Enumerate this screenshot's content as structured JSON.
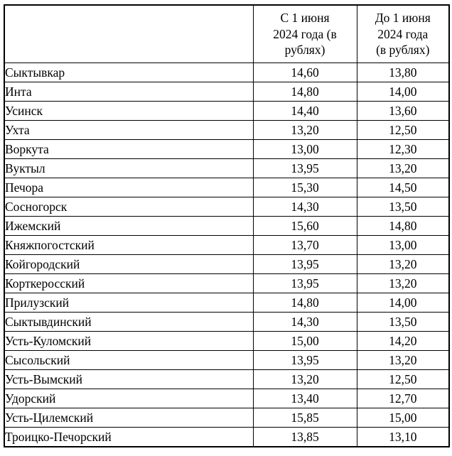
{
  "table": {
    "headers": {
      "corner": "",
      "from_june": "С 1 июня\n2024 года (в\nрублях)",
      "before_june": "До 1 июня\n2024 года\n(в рублях)"
    },
    "rows": [
      {
        "name": "Сыктывкар",
        "new": "14,60",
        "old": "13,80"
      },
      {
        "name": "Инта",
        "new": "14,80",
        "old": "14,00"
      },
      {
        "name": "Усинск",
        "new": "14,40",
        "old": "13,60"
      },
      {
        "name": "Ухта",
        "new": "13,20",
        "old": "12,50"
      },
      {
        "name": "Воркута",
        "new": "13,00",
        "old": "12,30"
      },
      {
        "name": "Вуктыл",
        "new": "13,95",
        "old": "13,20"
      },
      {
        "name": "Печора",
        "new": "15,30",
        "old": "14,50"
      },
      {
        "name": "Сосногорск",
        "new": "14,30",
        "old": "13,50"
      },
      {
        "name": "Ижемский",
        "new": "15,60",
        "old": "14,80"
      },
      {
        "name": "Княжпогостский",
        "new": "13,70",
        "old": "13,00"
      },
      {
        "name": "Койгородский",
        "new": "13,95",
        "old": "13,20"
      },
      {
        "name": "Корткеросский",
        "new": "13,95",
        "old": "13,20"
      },
      {
        "name": "Прилузский",
        "new": "14,80",
        "old": "14,00"
      },
      {
        "name": "Сыктывдинский",
        "new": "14,30",
        "old": "13,50"
      },
      {
        "name": "Усть-Куломский",
        "new": "15,00",
        "old": "14,20"
      },
      {
        "name": "Сысольский",
        "new": "13,95",
        "old": "13,20"
      },
      {
        "name": "Усть-Вымский",
        "new": "13,20",
        "old": "12,50"
      },
      {
        "name": "Удорский",
        "new": "13,40",
        "old": "12,70"
      },
      {
        "name": "Усть-Цилемский",
        "new": "15,85",
        "old": "15,00"
      },
      {
        "name": "Троицко-Печорский",
        "new": "13,85",
        "old": "13,10"
      }
    ]
  }
}
